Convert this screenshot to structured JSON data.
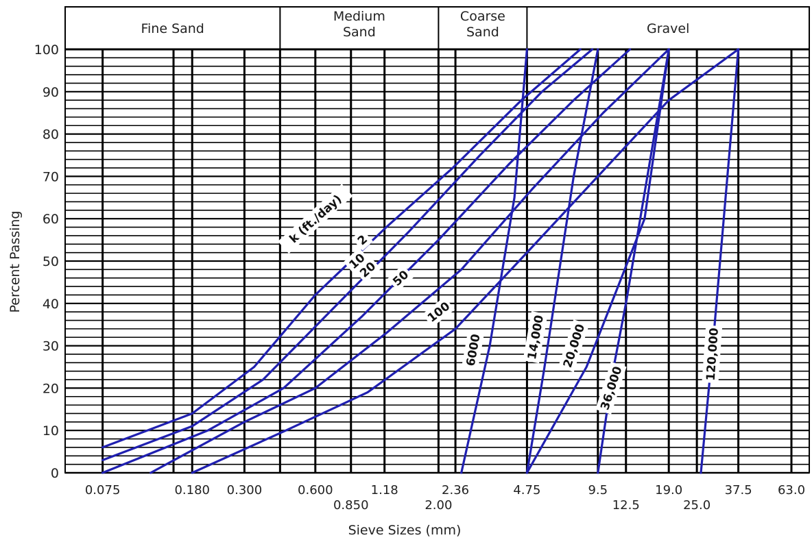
{
  "chart_data": {
    "type": "line",
    "xlabel": "Sieve Sizes (mm)",
    "ylabel": "Percent Passing",
    "ylim": [
      0,
      100
    ],
    "yticks": [
      "0",
      "10",
      "20",
      "30",
      "40",
      "50",
      "60",
      "70",
      "80",
      "90",
      "100"
    ],
    "x_scale": "log",
    "xlim": [
      0.052,
      75
    ],
    "grid": "on",
    "bands": [
      {
        "label_lines": [
          "Fine Sand"
        ],
        "from": 0.052,
        "to": 0.425
      },
      {
        "label_lines": [
          "Medium",
          "Sand"
        ],
        "from": 0.425,
        "to": 2.0
      },
      {
        "label_lines": [
          "Coarse",
          "Sand"
        ],
        "from": 2.0,
        "to": 4.75
      },
      {
        "label_lines": [
          "Gravel"
        ],
        "from": 4.75,
        "to": 75
      }
    ],
    "x_ticks_upper": [
      {
        "label": "0.075",
        "x": 0.075
      },
      {
        "label": "0.180",
        "x": 0.18
      },
      {
        "label": "0.300",
        "x": 0.3
      },
      {
        "label": "0.600",
        "x": 0.6
      },
      {
        "label": "1.18",
        "x": 1.18
      },
      {
        "label": "2.36",
        "x": 2.36
      },
      {
        "label": "4.75",
        "x": 4.75
      },
      {
        "label": "9.5",
        "x": 9.5
      },
      {
        "label": "19.0",
        "x": 19.0
      },
      {
        "label": "37.5",
        "x": 37.5
      },
      {
        "label": "63.0",
        "x": 63.0
      }
    ],
    "x_ticks_lower": [
      {
        "label": "0.850",
        "x": 0.85
      },
      {
        "label": "2.00",
        "x": 2.0
      },
      {
        "label": "12.5",
        "x": 12.5
      },
      {
        "label": "25.0",
        "x": 25.0
      }
    ],
    "vertical_lines_x": [
      0.075,
      0.15,
      0.18,
      0.3,
      0.425,
      0.6,
      0.85,
      1.18,
      2.0,
      2.36,
      4.75,
      9.5,
      12.5,
      19.0,
      25.0,
      37.5,
      63.0
    ],
    "series_color": "#2020b0",
    "series": [
      {
        "points": [
          [
            0.075,
            6
          ],
          [
            0.18,
            14
          ],
          [
            0.33,
            25
          ],
          [
            0.6,
            42
          ],
          [
            1.2,
            58
          ],
          [
            2.3,
            72
          ],
          [
            4.5,
            88
          ],
          [
            8.0,
            100
          ]
        ]
      },
      {
        "points": [
          [
            0.075,
            3
          ],
          [
            0.18,
            11
          ],
          [
            0.36,
            22
          ],
          [
            0.75,
            40
          ],
          [
            1.5,
            57
          ],
          [
            3.0,
            75
          ],
          [
            5.5,
            90
          ],
          [
            9.0,
            100
          ]
        ]
      },
      {
        "points": [
          [
            0.075,
            0
          ],
          [
            0.21,
            10
          ],
          [
            0.44,
            20
          ],
          [
            0.95,
            37
          ],
          [
            2.0,
            55
          ],
          [
            4.0,
            73
          ],
          [
            7.5,
            88
          ],
          [
            13.0,
            100
          ]
        ]
      },
      {
        "points": [
          [
            0.12,
            0
          ],
          [
            0.3,
            12
          ],
          [
            0.6,
            20
          ],
          [
            1.2,
            33
          ],
          [
            2.5,
            48
          ],
          [
            5.0,
            67
          ],
          [
            10.0,
            85
          ],
          [
            19.0,
            100
          ]
        ]
      },
      {
        "points": [
          [
            0.18,
            0
          ],
          [
            0.45,
            10
          ],
          [
            1.0,
            19
          ],
          [
            2.36,
            34
          ],
          [
            4.75,
            52
          ],
          [
            9.5,
            70
          ],
          [
            19.0,
            88
          ],
          [
            37.5,
            100
          ]
        ]
      },
      {
        "points": [
          [
            2.5,
            0
          ],
          [
            3.3,
            30
          ],
          [
            4.2,
            65
          ],
          [
            4.75,
            100
          ]
        ]
      },
      {
        "points": [
          [
            4.75,
            0
          ],
          [
            5.6,
            24
          ],
          [
            7.5,
            70
          ],
          [
            9.5,
            100
          ]
        ]
      },
      {
        "points": [
          [
            4.75,
            0
          ],
          [
            8.5,
            25
          ],
          [
            15.0,
            60
          ],
          [
            19.0,
            100
          ]
        ]
      },
      {
        "points": [
          [
            9.5,
            0
          ],
          [
            11.0,
            24
          ],
          [
            12.5,
            40
          ],
          [
            19.0,
            100
          ]
        ]
      },
      {
        "points": [
          [
            26.0,
            0
          ],
          [
            29.0,
            28
          ],
          [
            37.5,
            100
          ]
        ]
      }
    ],
    "annotations": [
      {
        "text": "k (ft./day)",
        "x": 0.6,
        "y": 60,
        "angle": -42
      },
      {
        "text": "2",
        "x": 0.95,
        "y": 55,
        "angle": -42
      },
      {
        "text": "10",
        "x": 0.9,
        "y": 50,
        "angle": -42
      },
      {
        "text": "20",
        "x": 1.0,
        "y": 48,
        "angle": -42
      },
      {
        "text": "50",
        "x": 1.38,
        "y": 46,
        "angle": -42
      },
      {
        "text": "100",
        "x": 2.0,
        "y": 38,
        "angle": -38
      },
      {
        "text": "6000",
        "x": 2.8,
        "y": 29,
        "angle": -80
      },
      {
        "text": "14,000",
        "x": 5.15,
        "y": 32,
        "angle": -80
      },
      {
        "text": "20,000",
        "x": 7.5,
        "y": 30,
        "angle": -72
      },
      {
        "text": "36,000",
        "x": 10.8,
        "y": 20,
        "angle": -72
      },
      {
        "text": "120,000",
        "x": 29.0,
        "y": 28,
        "angle": -86
      }
    ]
  }
}
